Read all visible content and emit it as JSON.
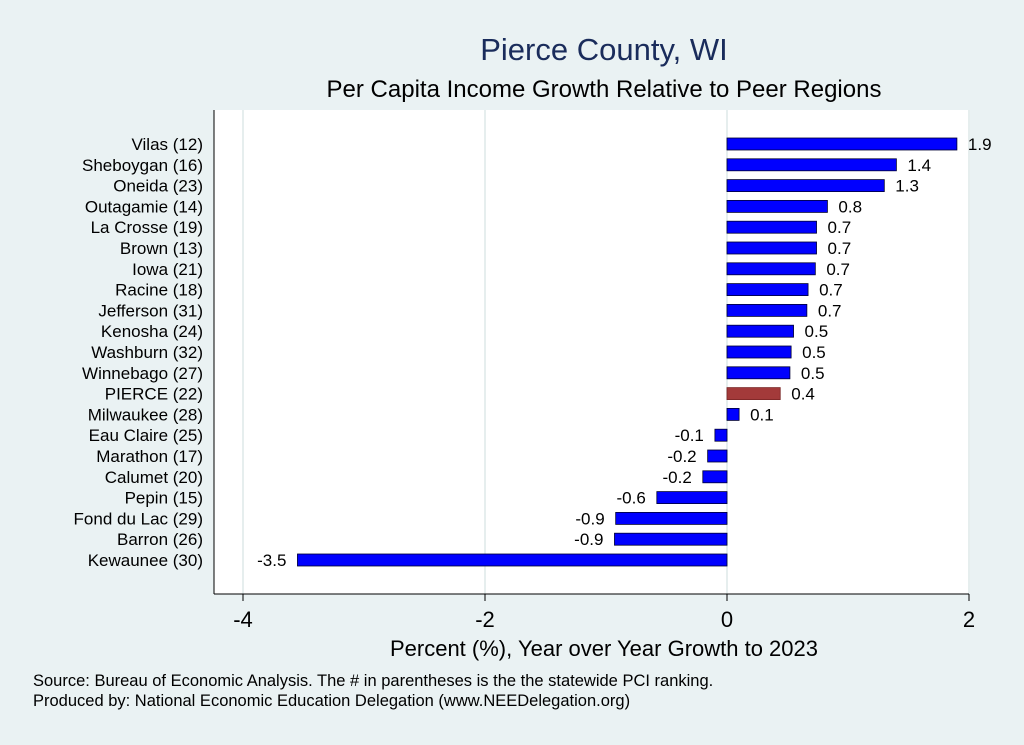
{
  "title": "Pierce County, WI",
  "subtitle": "Per Capita Income Growth Relative to Peer Regions",
  "source_note": "Source: Bureau of Economic Analysis. The # in parentheses is the the statewide PCI ranking.",
  "produced_note": "Produced by: National Economic Education Delegation (www.NEEDelegation.org)",
  "colors": {
    "bar": "#0000ff",
    "highlight": "#a33a3a",
    "background": "#eaf2f3",
    "plot": "#ffffff"
  },
  "chart_data": {
    "type": "bar",
    "orientation": "horizontal",
    "categories": [
      "Vilas (12)",
      "Sheboygan (16)",
      "Oneida (23)",
      "Outagamie (14)",
      "La Crosse (19)",
      "Brown (13)",
      "Iowa (21)",
      "Racine (18)",
      "Jefferson (31)",
      "Kenosha (24)",
      "Washburn (32)",
      "Winnebago (27)",
      "PIERCE (22)",
      "Milwaukee (28)",
      "Eau Claire (25)",
      "Marathon (17)",
      "Calumet (20)",
      "Pepin (15)",
      "Fond du Lac (29)",
      "Barron (26)",
      "Kewaunee (30)"
    ],
    "values": [
      1.9,
      1.4,
      1.3,
      0.83,
      0.74,
      0.74,
      0.73,
      0.67,
      0.66,
      0.55,
      0.53,
      0.52,
      0.44,
      0.1,
      -0.1,
      -0.16,
      -0.2,
      -0.58,
      -0.92,
      -0.93,
      -3.55
    ],
    "labels": [
      "1.9",
      "1.4",
      "1.3",
      "0.8",
      "0.7",
      "0.7",
      "0.7",
      "0.7",
      "0.7",
      "0.5",
      "0.5",
      "0.5",
      "0.4",
      "0.1",
      "-0.1",
      "-0.2",
      "-0.2",
      "-0.6",
      "-0.9",
      "-0.9",
      "-3.5"
    ],
    "highlight": "PIERCE (22)",
    "xlabel": "Percent (%), Year over Year Growth to 2023",
    "xticks": [
      -4,
      -2,
      0,
      2
    ],
    "xlim": [
      -4.2,
      2.2
    ],
    "grid": true
  }
}
